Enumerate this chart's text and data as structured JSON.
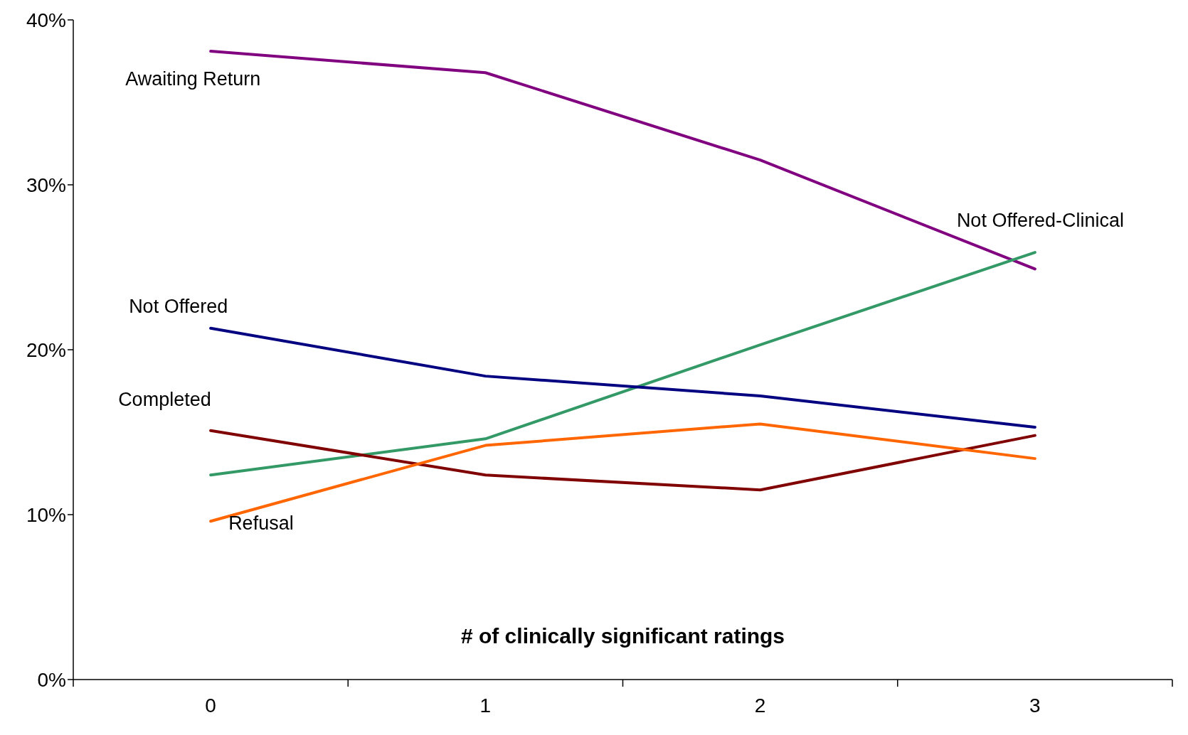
{
  "chart_data": {
    "type": "line",
    "xlabel": "# of clinically significant ratings",
    "categories": [
      "0",
      "1",
      "2",
      "3"
    ],
    "series": [
      {
        "name": "Awaiting Return",
        "color": "#800080",
        "values": [
          38.1,
          36.8,
          31.5,
          24.9
        ]
      },
      {
        "name": "Not Offered-Clinical",
        "color": "#339966",
        "values": [
          12.4,
          14.6,
          20.3,
          25.9
        ]
      },
      {
        "name": "Not Offered",
        "color": "#000080",
        "values": [
          21.3,
          18.4,
          17.2,
          15.3
        ]
      },
      {
        "name": "Completed",
        "color": "#800000",
        "values": [
          15.1,
          12.4,
          11.5,
          14.8
        ]
      },
      {
        "name": "Refusal",
        "color": "#ff6600",
        "values": [
          9.6,
          14.2,
          15.5,
          13.4
        ]
      }
    ],
    "ylim": [
      0,
      40
    ],
    "yticks": [
      {
        "value": 0,
        "label": "0%"
      },
      {
        "value": 10,
        "label": "10%"
      },
      {
        "value": 20,
        "label": "20%"
      },
      {
        "value": 30,
        "label": "30%"
      },
      {
        "value": 40,
        "label": "40%"
      }
    ],
    "grid": false,
    "legend": false,
    "marker": "none",
    "line_style": "solid"
  }
}
